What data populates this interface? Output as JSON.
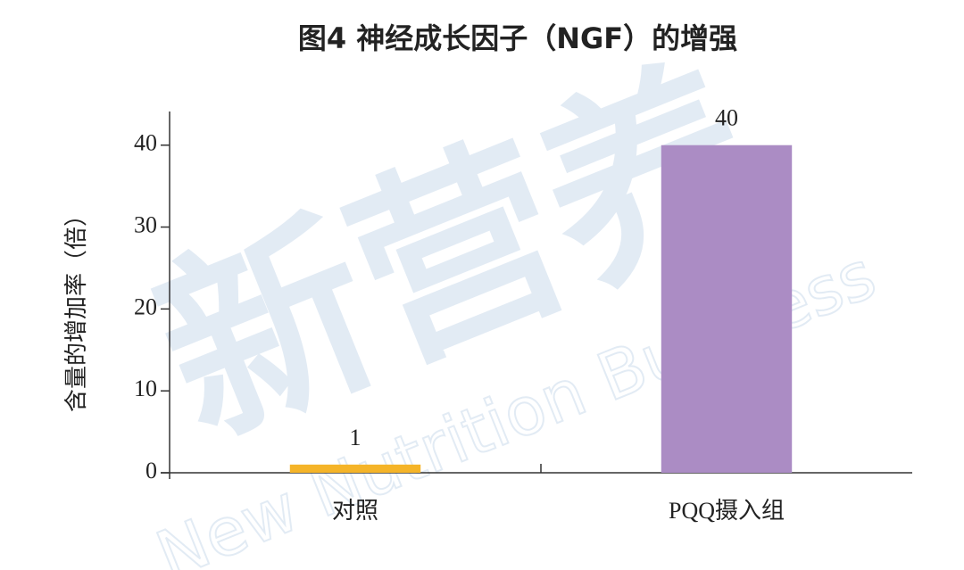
{
  "chart_data": {
    "type": "bar",
    "title": "图4 神经成长因子（NGF）的增强",
    "y_label": "含量的增加率（倍）",
    "categories": [
      "对照",
      "PQQ摄入组"
    ],
    "values": [
      1,
      40
    ],
    "colors": [
      "#f5b428",
      "#ab8cc4"
    ],
    "ylim": [
      0,
      44
    ],
    "yticks": [
      0,
      10,
      20,
      30,
      40
    ],
    "grid": false,
    "watermark": [
      "新营养",
      "New Nutrition Business"
    ]
  }
}
